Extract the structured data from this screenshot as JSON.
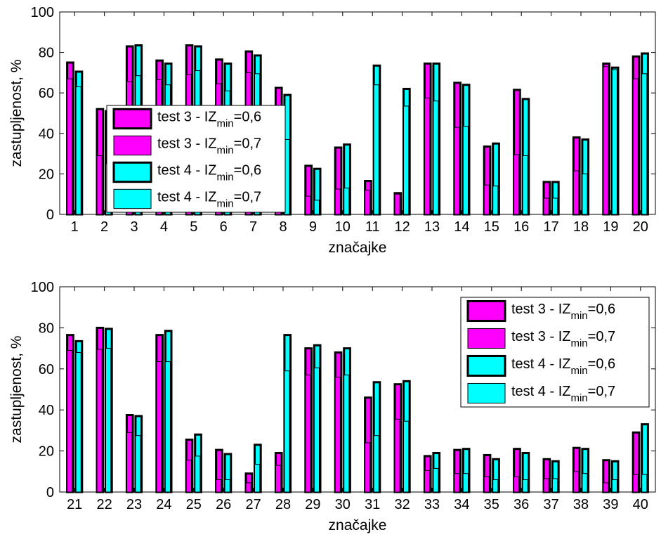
{
  "colors": {
    "test3": "#ff00ff",
    "test4": "#00ffff",
    "axes": "#000000",
    "background": "#ffffff"
  },
  "legend_items": [
    {
      "prefix": "test 3 - IZ",
      "sub": "min",
      "suffix": "=0,6",
      "color": "#ff00ff",
      "style": "thick"
    },
    {
      "prefix": "test 3 - IZ",
      "sub": "min",
      "suffix": "=0,7",
      "color": "#ff00ff",
      "style": "thin"
    },
    {
      "prefix": "test 4 - IZ",
      "sub": "min",
      "suffix": "=0,6",
      "color": "#00ffff",
      "style": "thick"
    },
    {
      "prefix": "test 4 - IZ",
      "sub": "min",
      "suffix": "=0,7",
      "color": "#00ffff",
      "style": "thin"
    }
  ],
  "chart_data": [
    {
      "type": "bar",
      "xlabel": "značajke",
      "ylabel": "zastupljenost, %",
      "ylim": [
        0,
        100
      ],
      "yticks": [
        0,
        20,
        40,
        60,
        80,
        100
      ],
      "grid": false,
      "legend_placement": "top-left (middle)",
      "categories": [
        "1",
        "2",
        "3",
        "4",
        "5",
        "6",
        "7",
        "8",
        "9",
        "10",
        "11",
        "12",
        "13",
        "14",
        "15",
        "16",
        "17",
        "18",
        "19",
        "20"
      ],
      "series": [
        {
          "name": "test 3 - IZmin=0,6",
          "values": [
            75,
            52,
            83,
            76,
            83.5,
            76.5,
            80.5,
            62.5,
            24,
            33,
            16.5,
            10.5,
            74.5,
            65,
            33.5,
            61.5,
            16,
            38,
            74.5,
            78
          ]
        },
        {
          "name": "test 3 - IZmin=0,7",
          "values": [
            67,
            29,
            65.5,
            66.5,
            69,
            64.5,
            70,
            51,
            9,
            12.5,
            12,
            10,
            57.5,
            43,
            14.5,
            29.5,
            8,
            21.5,
            73,
            67
          ]
        },
        {
          "name": "test 4 - IZmin=0,6",
          "values": [
            70.5,
            51,
            83.5,
            74.5,
            83,
            74.5,
            78.5,
            59,
            22.5,
            34.5,
            73.5,
            62,
            74.5,
            64,
            35,
            57,
            16,
            37,
            72.5,
            79.5
          ]
        },
        {
          "name": "test 4 - IZmin=0,7",
          "values": [
            63,
            25,
            68.5,
            64,
            71,
            61,
            69.5,
            37,
            7,
            13,
            64,
            53.5,
            56,
            43.5,
            14,
            29,
            8,
            20,
            71.5,
            69.5
          ]
        }
      ]
    },
    {
      "type": "bar",
      "xlabel": "značajke",
      "ylabel": "zastupljenost, %",
      "ylim": [
        0,
        100
      ],
      "yticks": [
        0,
        20,
        40,
        60,
        80,
        100
      ],
      "grid": false,
      "legend_placement": "top-right",
      "categories": [
        "21",
        "22",
        "23",
        "24",
        "25",
        "26",
        "27",
        "28",
        "29",
        "30",
        "31",
        "32",
        "33",
        "34",
        "35",
        "36",
        "37",
        "38",
        "39",
        "40"
      ],
      "series": [
        {
          "name": "test 3 - IZmin=0,6",
          "values": [
            76.5,
            80,
            37.5,
            76.5,
            25.5,
            20.5,
            9,
            19,
            70,
            68,
            46,
            52.5,
            17.5,
            20.5,
            18,
            21,
            16,
            21.5,
            15.5,
            29
          ]
        },
        {
          "name": "test 3 - IZmin=0,7",
          "values": [
            69,
            69.5,
            29,
            63.5,
            15.5,
            6,
            4.5,
            13,
            57,
            56,
            24,
            35.5,
            10.5,
            9,
            7.5,
            7.5,
            6.5,
            10,
            4.5,
            8.5
          ]
        },
        {
          "name": "test 4 - IZmin=0,6",
          "values": [
            73.5,
            79.5,
            37,
            78.5,
            28,
            18.5,
            23,
            76.5,
            71.5,
            70,
            53.5,
            54,
            19,
            21,
            16,
            19,
            15,
            21,
            15,
            33
          ]
        },
        {
          "name": "test 4 - IZmin=0,7",
          "values": [
            68,
            70,
            27.5,
            63.5,
            17.5,
            6,
            13.5,
            59,
            60.5,
            57,
            27.5,
            34.5,
            11.5,
            9,
            6,
            6,
            6.5,
            9,
            6,
            8.5
          ]
        }
      ]
    }
  ]
}
